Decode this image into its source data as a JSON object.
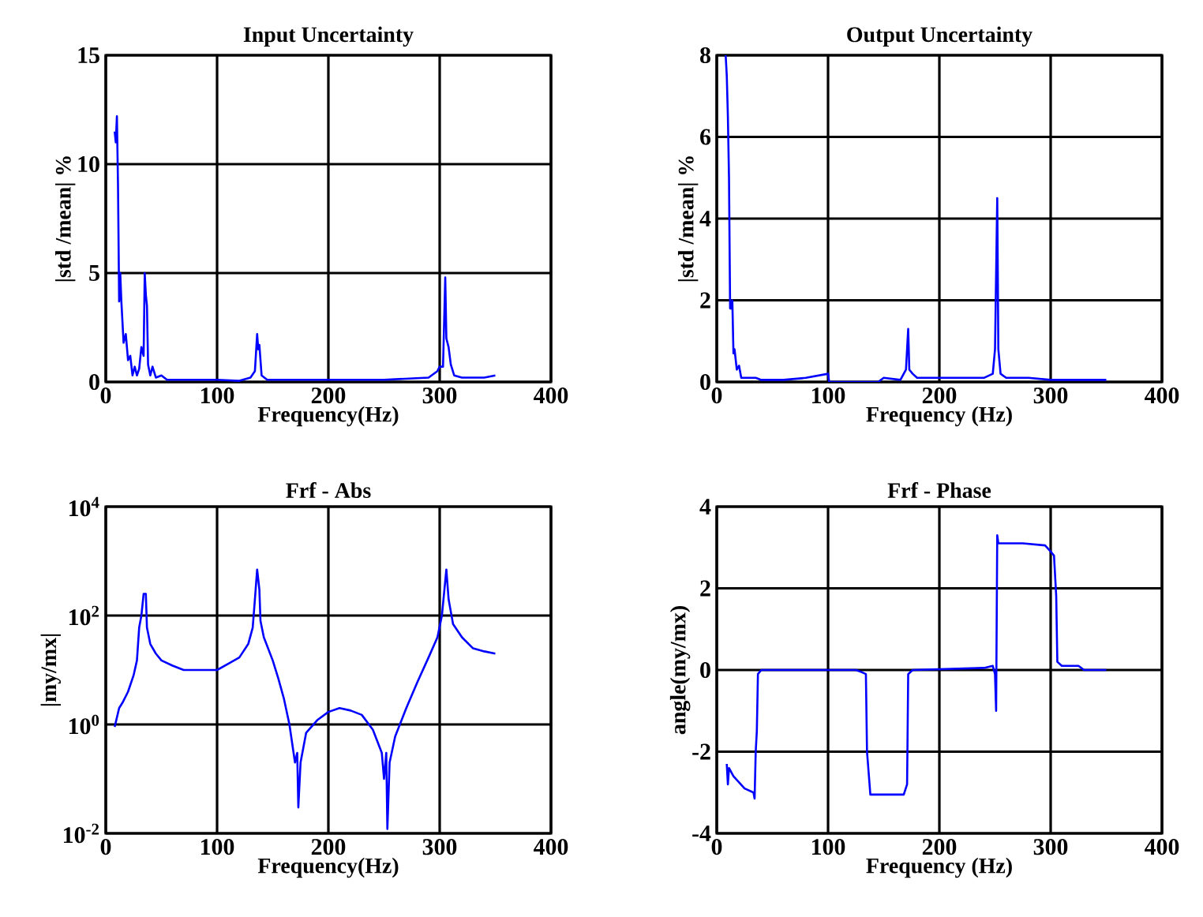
{
  "chart_data": [
    {
      "type": "line",
      "title": "Input Uncertainty",
      "xlabel": "Frequency(Hz)",
      "ylabel": "|std /mean| %",
      "xlim": [
        0,
        400
      ],
      "xticks": [
        0,
        100,
        200,
        300,
        400
      ],
      "ylim": [
        0,
        15
      ],
      "yticks": [
        0,
        5,
        10,
        15
      ],
      "grid": true,
      "marker": "none",
      "color": "#0000ff",
      "x": [
        8,
        9,
        10,
        11,
        12,
        13,
        14,
        16,
        18,
        20,
        22,
        24,
        26,
        28,
        30,
        32,
        34,
        35,
        36,
        37,
        38,
        40,
        42,
        45,
        50,
        55,
        80,
        100,
        120,
        130,
        134,
        136,
        137,
        138,
        140,
        145,
        200,
        250,
        290,
        298,
        300,
        303,
        305,
        306,
        308,
        310,
        313,
        320,
        340,
        350
      ],
      "values": [
        11.5,
        11,
        12.2,
        9,
        3.7,
        5,
        3.7,
        1.8,
        2.2,
        1,
        1.2,
        0.3,
        0.7,
        0.3,
        0.6,
        1.6,
        1.2,
        5,
        4,
        3.5,
        0.8,
        0.3,
        0.7,
        0.2,
        0.3,
        0.1,
        0.1,
        0.1,
        0.05,
        0.2,
        0.5,
        2.2,
        1.5,
        1.7,
        0.3,
        0.1,
        0.1,
        0.1,
        0.2,
        0.5,
        0.7,
        0.7,
        4.8,
        2,
        1.6,
        0.8,
        0.3,
        0.2,
        0.2,
        0.3
      ]
    },
    {
      "type": "line",
      "title": "Output Uncertainty",
      "xlabel": "Frequency (Hz)",
      "ylabel": "|std /mean| %",
      "xlim": [
        0,
        400
      ],
      "xticks": [
        0,
        100,
        200,
        300,
        400
      ],
      "ylim": [
        0,
        8
      ],
      "yticks": [
        0,
        2,
        4,
        6,
        8
      ],
      "grid": true,
      "marker": "none",
      "color": "#0000ff",
      "x": [
        8,
        9,
        10,
        11,
        12,
        13,
        14,
        15,
        16,
        18,
        20,
        22,
        35,
        40,
        60,
        80,
        100,
        101,
        145,
        150,
        165,
        170,
        172,
        173,
        176,
        180,
        240,
        248,
        250,
        252,
        253,
        255,
        260,
        280,
        300,
        350
      ],
      "values": [
        8,
        7.5,
        6.5,
        5,
        1.8,
        1.8,
        2,
        0.7,
        0.8,
        0.3,
        0.4,
        0.1,
        0.1,
        0.05,
        0.05,
        0.1,
        0.2,
        0,
        0,
        0.1,
        0.05,
        0.3,
        1.3,
        0.3,
        0.2,
        0.1,
        0.1,
        0.2,
        0.8,
        4.5,
        0.8,
        0.2,
        0.1,
        0.1,
        0.05,
        0.05
      ]
    },
    {
      "type": "line",
      "title": "Frf - Abs",
      "xlabel": "Frequency(Hz)",
      "ylabel": "|my/mx|",
      "log": "y",
      "xlim": [
        0,
        400
      ],
      "xticks": [
        0,
        100,
        200,
        300,
        400
      ],
      "ylim": [
        0.01,
        10000
      ],
      "yticks": [
        {
          "value": 0.01,
          "label": "10$^{-2}$"
        },
        {
          "value": 1,
          "label": "10$^{0}$"
        },
        {
          "value": 100,
          "label": "10$^{2}$"
        },
        {
          "value": 10000,
          "label": "10$^{4}$"
        }
      ],
      "grid": true,
      "marker": "none",
      "color": "#0000ff",
      "x": [
        8,
        12,
        15,
        20,
        25,
        28,
        30,
        32,
        34,
        36,
        37,
        40,
        45,
        50,
        60,
        70,
        100,
        110,
        120,
        128,
        132,
        134,
        136,
        138,
        139,
        142,
        150,
        155,
        160,
        165,
        170,
        172,
        173,
        175,
        180,
        190,
        200,
        210,
        220,
        230,
        240,
        248,
        250,
        252,
        253,
        255,
        260,
        270,
        280,
        290,
        298,
        302,
        306,
        308,
        312,
        320,
        330,
        340,
        350
      ],
      "values": [
        0.9,
        2,
        2.5,
        4,
        8,
        15,
        60,
        100,
        250,
        250,
        60,
        30,
        20,
        15,
        12,
        10,
        10,
        13,
        17,
        30,
        60,
        200,
        700,
        300,
        80,
        40,
        15,
        7,
        3,
        1,
        0.2,
        0.3,
        0.03,
        0.2,
        0.7,
        1.2,
        1.7,
        2,
        1.8,
        1.5,
        0.8,
        0.3,
        0.1,
        0.3,
        0.012,
        0.2,
        0.6,
        2,
        6,
        17,
        40,
        100,
        700,
        200,
        70,
        40,
        25,
        22,
        20
      ]
    },
    {
      "type": "line",
      "title": "Frf - Phase",
      "xlabel": "Frequency (Hz)",
      "ylabel": "angle(my/mx)",
      "xlim": [
        0,
        400
      ],
      "xticks": [
        0,
        100,
        200,
        300,
        400
      ],
      "ylim": [
        -4,
        4
      ],
      "yticks": [
        -4,
        -2,
        0,
        2,
        4
      ],
      "grid": true,
      "marker": "none",
      "color": "#0000ff",
      "x": [
        9,
        10,
        11,
        15,
        25,
        33,
        34,
        35,
        36,
        37,
        40,
        125,
        130,
        134,
        135,
        138,
        150,
        168,
        171,
        172,
        176,
        240,
        248,
        250,
        251,
        252,
        253,
        265,
        275,
        295,
        300,
        303,
        305,
        306,
        310,
        325,
        330,
        350
      ],
      "values": [
        -2.3,
        -2.8,
        -2.4,
        -2.6,
        -2.9,
        -3.0,
        -3.15,
        -2.0,
        -1.5,
        -0.1,
        0,
        0,
        -0.05,
        -0.1,
        -2.0,
        -3.05,
        -3.05,
        -3.05,
        -2.8,
        -0.1,
        0,
        0.05,
        0.1,
        -0.1,
        -1.0,
        3.3,
        3.1,
        3.1,
        3.1,
        3.05,
        2.9,
        2.8,
        1.8,
        0.2,
        0.1,
        0.1,
        0,
        0
      ]
    }
  ]
}
